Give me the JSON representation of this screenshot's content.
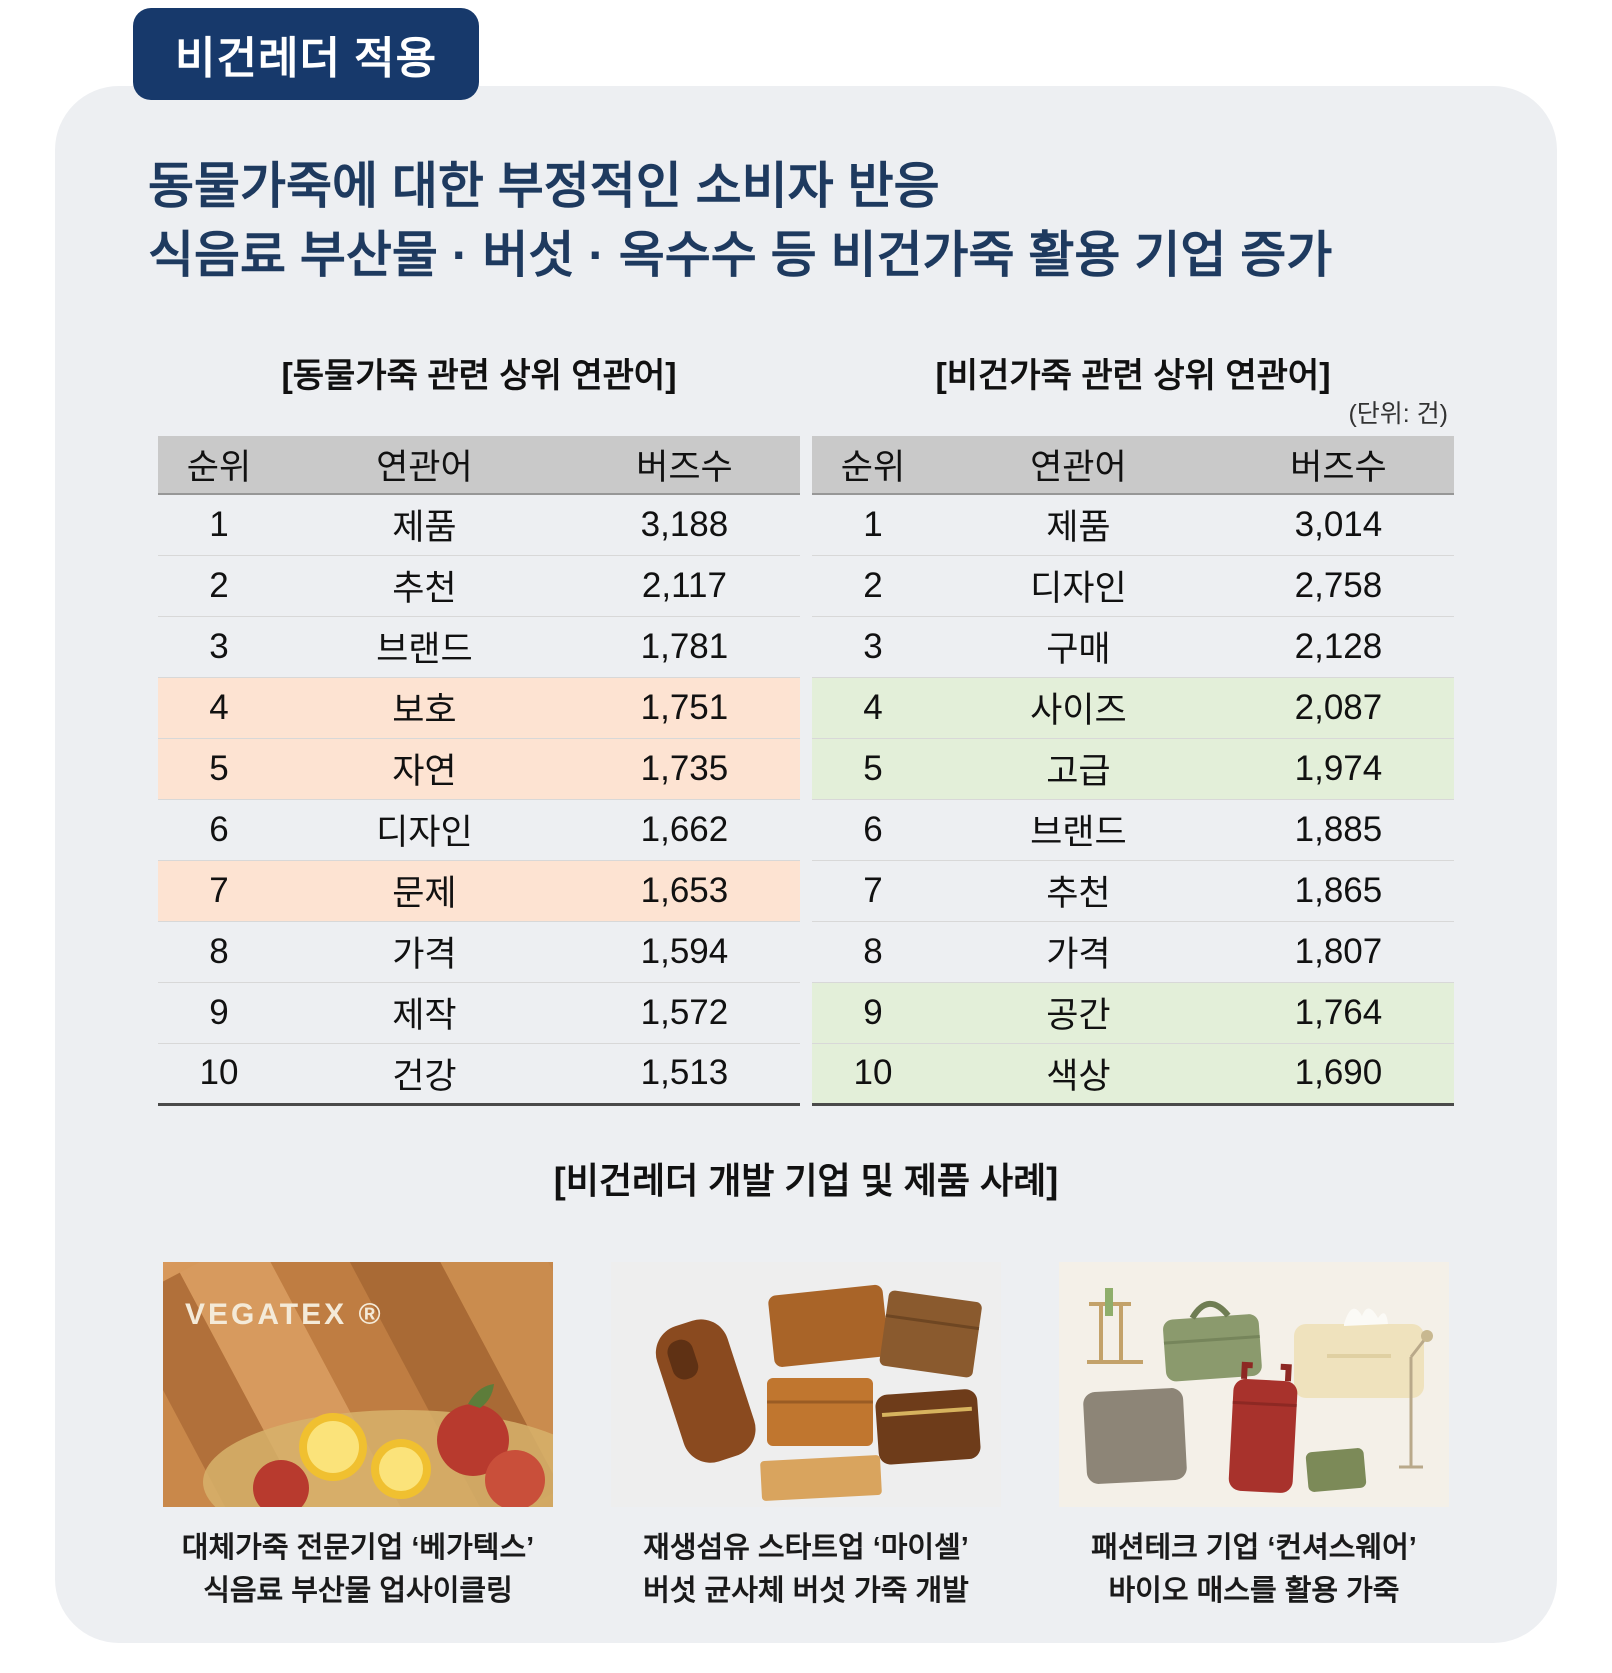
{
  "badge": {
    "label": "비건레더 적용"
  },
  "title": {
    "line1": "동물가죽에 대한 부정적인 소비자 반응",
    "line2": "식음료 부산물 · 버섯 · 옥수수 등 비건가죽 활용 기업 증가"
  },
  "chart_data": [
    {
      "type": "table",
      "title": "[동물가죽 관련 상위 연관어]",
      "columns": [
        "순위",
        "연관어",
        "버즈수"
      ],
      "highlight_color": "#fde3d2",
      "rows": [
        {
          "rank": "1",
          "term": "제품",
          "buzz": "3,188",
          "highlight": false
        },
        {
          "rank": "2",
          "term": "추천",
          "buzz": "2,117",
          "highlight": false
        },
        {
          "rank": "3",
          "term": "브랜드",
          "buzz": "1,781",
          "highlight": false
        },
        {
          "rank": "4",
          "term": "보호",
          "buzz": "1,751",
          "highlight": true
        },
        {
          "rank": "5",
          "term": "자연",
          "buzz": "1,735",
          "highlight": true
        },
        {
          "rank": "6",
          "term": "디자인",
          "buzz": "1,662",
          "highlight": false
        },
        {
          "rank": "7",
          "term": "문제",
          "buzz": "1,653",
          "highlight": true
        },
        {
          "rank": "8",
          "term": "가격",
          "buzz": "1,594",
          "highlight": false
        },
        {
          "rank": "9",
          "term": "제작",
          "buzz": "1,572",
          "highlight": false
        },
        {
          "rank": "10",
          "term": "건강",
          "buzz": "1,513",
          "highlight": false
        }
      ]
    },
    {
      "type": "table",
      "title": "[비건가죽 관련 상위 연관어]",
      "unit": "(단위: 건)",
      "columns": [
        "순위",
        "연관어",
        "버즈수"
      ],
      "highlight_color": "#e3efd9",
      "rows": [
        {
          "rank": "1",
          "term": "제품",
          "buzz": "3,014",
          "highlight": false
        },
        {
          "rank": "2",
          "term": "디자인",
          "buzz": "2,758",
          "highlight": false
        },
        {
          "rank": "3",
          "term": "구매",
          "buzz": "2,128",
          "highlight": false
        },
        {
          "rank": "4",
          "term": "사이즈",
          "buzz": "2,087",
          "highlight": true
        },
        {
          "rank": "5",
          "term": "고급",
          "buzz": "1,974",
          "highlight": true
        },
        {
          "rank": "6",
          "term": "브랜드",
          "buzz": "1,885",
          "highlight": false
        },
        {
          "rank": "7",
          "term": "추천",
          "buzz": "1,865",
          "highlight": false
        },
        {
          "rank": "8",
          "term": "가격",
          "buzz": "1,807",
          "highlight": false
        },
        {
          "rank": "9",
          "term": "공간",
          "buzz": "1,764",
          "highlight": true
        },
        {
          "rank": "10",
          "term": "색상",
          "buzz": "1,690",
          "highlight": true
        }
      ]
    }
  ],
  "examples": {
    "title": "[비건레더 개발 기업 및 제품 사례]",
    "items": [
      {
        "image_text": "VEGATEX ®",
        "caption_line1": "대체가죽 전문기업 ‘베가텍스’",
        "caption_line2": "식음료 부산물 업사이클링"
      },
      {
        "caption_line1": "재생섬유 스타트업 ‘마이셀’",
        "caption_line2": "버섯 균사체 버섯 가죽 개발"
      },
      {
        "caption_line1": "패션테크 기업 ‘컨셔스웨어’",
        "caption_line2": "바이오 매스를 활용 가죽"
      }
    ]
  },
  "colors": {
    "badge_bg": "#17396b",
    "title_text": "#1e3a5f",
    "panel_bg": "#edeff2",
    "animal_highlight": "#fde3d2",
    "vegan_highlight": "#e3efd9"
  }
}
